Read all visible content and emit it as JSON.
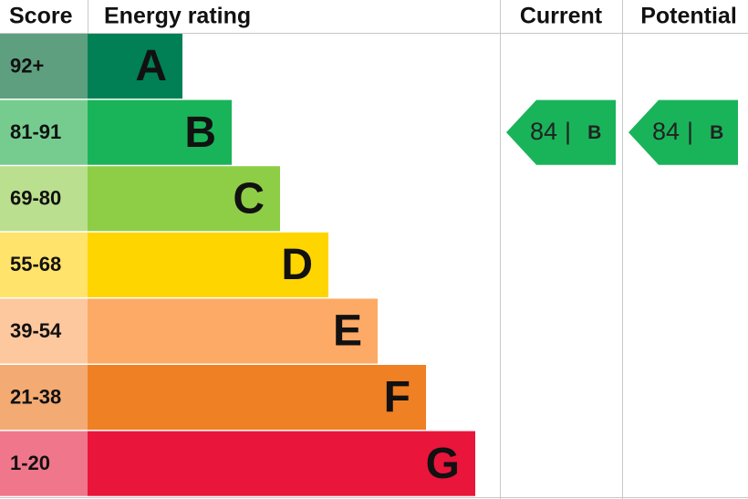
{
  "header": {
    "score": "Score",
    "rating": "Energy rating",
    "current": "Current",
    "potential": "Potential"
  },
  "bands": [
    {
      "score": "92+",
      "letter": "A",
      "color": "#008054",
      "score_color": "#5e9f80"
    },
    {
      "score": "81-91",
      "letter": "B",
      "color": "#19b459",
      "score_color": "#76cc8f"
    },
    {
      "score": "69-80",
      "letter": "C",
      "color": "#8dce46",
      "score_color": "#badf8e"
    },
    {
      "score": "55-68",
      "letter": "D",
      "color": "#ffd500",
      "score_color": "#ffe36a"
    },
    {
      "score": "39-54",
      "letter": "E",
      "color": "#fcaa65",
      "score_color": "#fdc89e"
    },
    {
      "score": "21-38",
      "letter": "F",
      "color": "#ef8023",
      "score_color": "#f4aa73"
    },
    {
      "score": "1-20",
      "letter": "G",
      "color": "#e9153b",
      "score_color": "#f0768b"
    }
  ],
  "current": {
    "score": 84,
    "separator": "|",
    "letter": "B"
  },
  "potential": {
    "score": 84,
    "separator": "|",
    "letter": "B"
  }
}
